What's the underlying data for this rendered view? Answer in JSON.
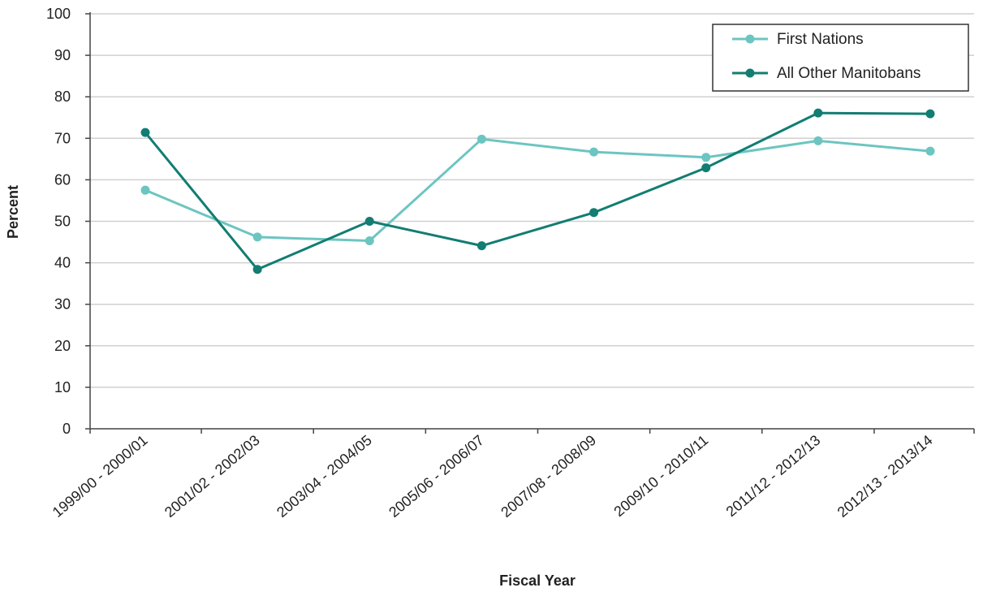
{
  "chart_data": {
    "type": "line",
    "xlabel": "Fiscal Year",
    "ylabel": "Percent",
    "ylim": [
      0,
      100
    ],
    "yticks": [
      0,
      10,
      20,
      30,
      40,
      50,
      60,
      70,
      80,
      90,
      100
    ],
    "grid": "horizontal",
    "legend_position": "top-right",
    "categories": [
      "1999/00 - 2000/01",
      "2001/02 - 2002/03",
      "2003/04 - 2004/05",
      "2005/06 - 2006/07",
      "2007/08 - 2008/09",
      "2009/10 - 2010/11",
      "2011/12 - 2012/13",
      "2012/13 - 2013/14"
    ],
    "series": [
      {
        "name": "First Nations",
        "color": "#6cc5c1",
        "values": [
          57.5,
          46.2,
          45.3,
          69.8,
          66.7,
          65.4,
          69.4,
          66.9
        ]
      },
      {
        "name": "All Other Manitobans",
        "color": "#127d72",
        "values": [
          71.4,
          38.4,
          50.0,
          44.1,
          52.1,
          62.9,
          76.1,
          75.9
        ]
      }
    ]
  }
}
